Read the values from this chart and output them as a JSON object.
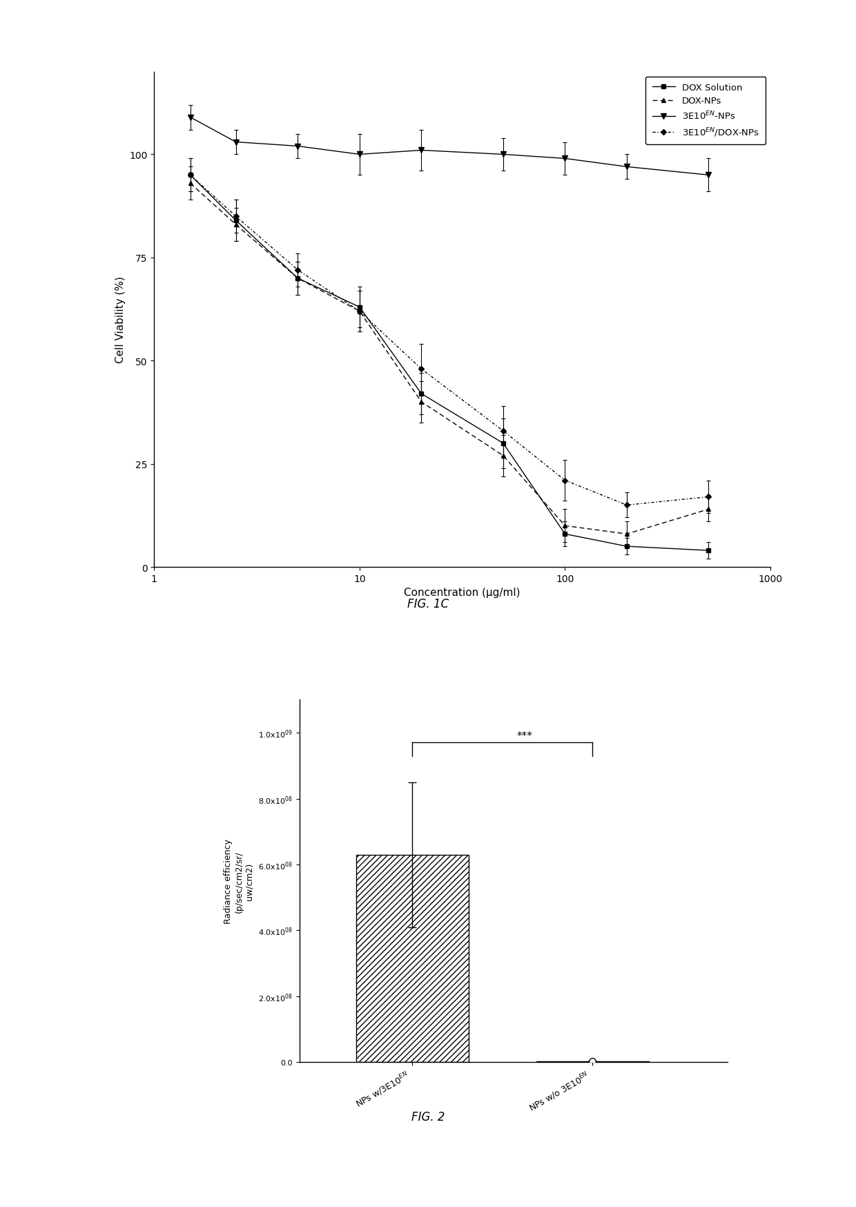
{
  "fig1c": {
    "title": "FIG. 1C",
    "xlabel": "Concentration (μg/ml)",
    "ylabel": "Cell Viability (%)",
    "xlim": [
      1,
      1000
    ],
    "ylim": [
      0,
      120
    ],
    "yticks": [
      0,
      25,
      50,
      75,
      100
    ],
    "series": {
      "DOX Solution": {
        "x": [
          1.5,
          2.5,
          5,
          10,
          20,
          50,
          100,
          200,
          500
        ],
        "y": [
          95,
          84,
          70,
          63,
          42,
          30,
          8,
          5,
          4
        ],
        "yerr": [
          4,
          5,
          4,
          5,
          5,
          6,
          3,
          2,
          2
        ],
        "linestyle": "solid",
        "marker": "s",
        "dashes": null
      },
      "DOX-NPs": {
        "x": [
          1.5,
          2.5,
          5,
          10,
          20,
          50,
          100,
          200,
          500
        ],
        "y": [
          93,
          83,
          70,
          62,
          40,
          27,
          10,
          8,
          14
        ],
        "yerr": [
          4,
          4,
          4,
          5,
          5,
          5,
          4,
          3,
          3
        ],
        "linestyle": "dashed",
        "marker": "^",
        "dashes": [
          5,
          3
        ]
      },
      "3E10EN-NPs": {
        "x": [
          1.5,
          2.5,
          5,
          10,
          20,
          50,
          100,
          200,
          500
        ],
        "y": [
          109,
          103,
          102,
          100,
          101,
          100,
          99,
          97,
          95
        ],
        "yerr": [
          3,
          3,
          3,
          5,
          5,
          4,
          4,
          3,
          4
        ],
        "linestyle": "solid",
        "marker": "v",
        "dashes": null
      },
      "3E10EN/DOX-NPs": {
        "x": [
          1.5,
          2.5,
          5,
          10,
          20,
          50,
          100,
          200,
          500
        ],
        "y": [
          95,
          85,
          72,
          62,
          48,
          33,
          21,
          15,
          17
        ],
        "yerr": [
          4,
          4,
          4,
          5,
          6,
          6,
          5,
          3,
          4
        ],
        "linestyle": "dashed",
        "marker": "D",
        "dashes": [
          3,
          2,
          1,
          2
        ]
      }
    },
    "legend_labels": {
      "DOX Solution": "DOX Solution",
      "DOX-NPs": "DOX-NPs",
      "3E10EN-NPs": "3E10$^{EN}$-NPs",
      "3E10EN/DOX-NPs": "3E10$^{EN}$/DOX-NPs"
    }
  },
  "fig2": {
    "title": "FIG. 2",
    "ylabel1": "Radiance efficiency",
    "ylabel2": "(p/sec/cm2/sr/",
    "ylabel3": "uw/cm2)",
    "ylim": [
      0,
      1100000000.0
    ],
    "yticks": [
      0.0,
      200000000.0,
      400000000.0,
      600000000.0,
      800000000.0,
      1000000000.0
    ],
    "ytick_labels": [
      "0.0",
      "2.0x10$^{08}$",
      "4.0x10$^{08}$",
      "6.0x10$^{08}$",
      "8.0x10$^{08}$",
      "1.0x10$^{09}$"
    ],
    "bar1_value": 630000000.0,
    "bar1_error": 220000000.0,
    "bar2_value": 2000000.0,
    "bar2_error": 1500000.0,
    "cat1": "NPs w/3E10$^{EN}$",
    "cat2": "NPs w/o 3E10$^{EN}$",
    "significance": "***"
  }
}
